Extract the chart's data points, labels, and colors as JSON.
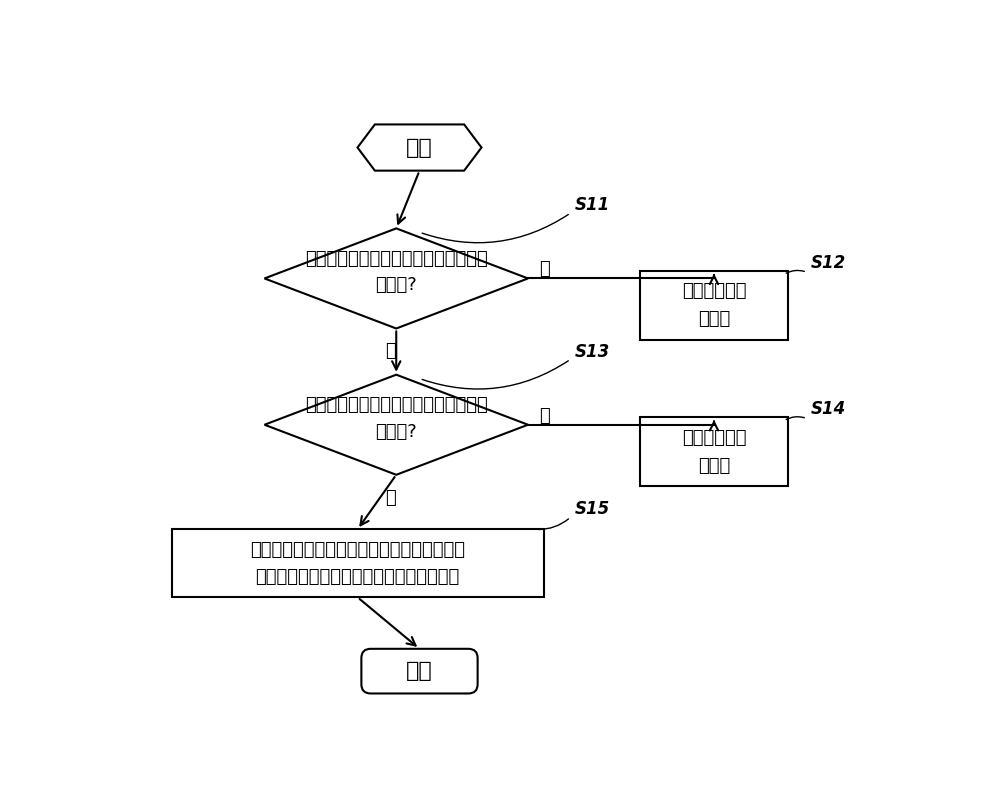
{
  "background_color": "#ffffff",
  "start_text": "开始",
  "end_text": "结束",
  "diamond1_text": "当前室内环境温度小于第一预设室内环\n境温度?",
  "diamond2_text": "当前室内环境温度高于第二预设室内环\n境温度?",
  "box12_text": "开启空调器的\n电辅热",
  "box14_text": "关闭空调器的\n电辅热",
  "box15_text": "依据所述当前室内环境温度在预设时间段的温\n升变化量开启或是关闭所述空调器的电辅热",
  "yes_text": "是",
  "no_text": "否",
  "s11_text": "S11",
  "s12_text": "S12",
  "s13_text": "S13",
  "s14_text": "S14",
  "s15_text": "S15",
  "line_color": "#000000",
  "box_color": "#ffffff",
  "text_color": "#000000",
  "font_size_main": 14,
  "font_size_small": 13,
  "font_size_label": 12
}
